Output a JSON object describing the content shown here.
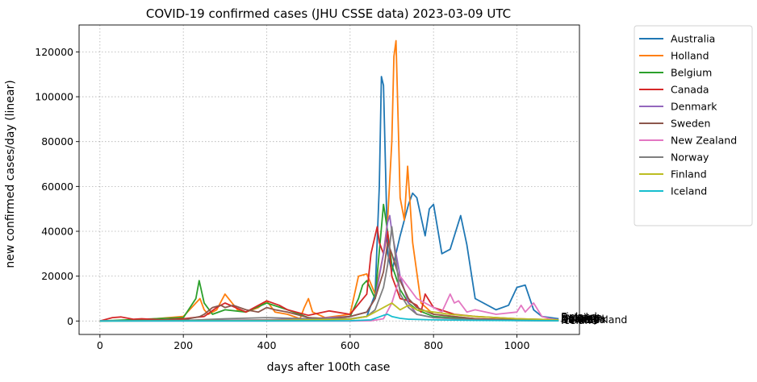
{
  "chart_data": {
    "type": "line",
    "title": "COVID-19 confirmed cases (JHU CSSE data) 2023-03-09 UTC",
    "xlabel": "days after 100th case",
    "ylabel": "new confirmed cases/day (linear)",
    "xlim": [
      -50,
      1150
    ],
    "ylim": [
      -6000,
      132000
    ],
    "x_ticks": [
      0,
      200,
      400,
      600,
      800,
      1000
    ],
    "y_ticks": [
      0,
      20000,
      40000,
      60000,
      80000,
      100000,
      120000
    ],
    "grid": true,
    "legend_position": "outside-right",
    "series": [
      {
        "name": "Australia",
        "color": "#1f77b4",
        "x": [
          0,
          100,
          200,
          300,
          400,
          500,
          600,
          640,
          660,
          670,
          675,
          680,
          690,
          700,
          720,
          740,
          750,
          760,
          780,
          790,
          800,
          820,
          840,
          860,
          865,
          880,
          900,
          950,
          980,
          1000,
          1020,
          1040,
          1060,
          1100
        ],
        "y": [
          0,
          200,
          300,
          300,
          200,
          500,
          800,
          2000,
          12000,
          60000,
          109000,
          105000,
          30000,
          22000,
          38000,
          52000,
          57000,
          55000,
          38000,
          50000,
          52000,
          30000,
          32000,
          44000,
          47000,
          34000,
          10000,
          5000,
          7000,
          15000,
          16000,
          5000,
          2000,
          1000
        ]
      },
      {
        "name": "Holland",
        "color": "#ff7f0e",
        "x": [
          0,
          100,
          200,
          240,
          250,
          260,
          280,
          300,
          330,
          350,
          380,
          400,
          420,
          450,
          480,
          490,
          500,
          510,
          540,
          600,
          620,
          640,
          660,
          680,
          690,
          700,
          705,
          710,
          715,
          720,
          730,
          738,
          750,
          770,
          800,
          900,
          1000,
          1100
        ],
        "y": [
          0,
          500,
          2000,
          10000,
          5000,
          3000,
          5000,
          12000,
          5000,
          4000,
          6000,
          9000,
          4000,
          3000,
          1000,
          6000,
          10000,
          4000,
          1500,
          3000,
          20000,
          21000,
          12000,
          30000,
          45000,
          80000,
          118000,
          125000,
          90000,
          55000,
          45000,
          69000,
          35000,
          8000,
          3000,
          1000,
          500,
          200
        ]
      },
      {
        "name": "Belgium",
        "color": "#2ca02c",
        "x": [
          0,
          100,
          200,
          230,
          238,
          250,
          270,
          300,
          350,
          400,
          450,
          500,
          550,
          600,
          620,
          630,
          640,
          660,
          680,
          690,
          700,
          720,
          740,
          760,
          800,
          900,
          1000,
          1100
        ],
        "y": [
          0,
          800,
          1500,
          10000,
          18000,
          8000,
          3000,
          5000,
          4000,
          8000,
          5000,
          1500,
          1000,
          2000,
          10000,
          16000,
          18000,
          10000,
          52000,
          40000,
          25000,
          14000,
          8000,
          5000,
          2000,
          800,
          300,
          100
        ]
      },
      {
        "name": "Canada",
        "color": "#d62728",
        "x": [
          0,
          30,
          50,
          80,
          100,
          150,
          200,
          250,
          280,
          300,
          350,
          400,
          430,
          450,
          500,
          550,
          600,
          640,
          650,
          660,
          665,
          670,
          680,
          690,
          700,
          710,
          720,
          740,
          760,
          770,
          780,
          800,
          850,
          900,
          1000,
          1100
        ],
        "y": [
          0,
          1500,
          1800,
          800,
          1000,
          500,
          1000,
          2000,
          6000,
          8000,
          4000,
          9000,
          7000,
          5000,
          2500,
          4500,
          3000,
          12000,
          30000,
          38000,
          42000,
          35000,
          30000,
          40000,
          20000,
          15000,
          10000,
          9000,
          7000,
          4000,
          12000,
          6000,
          3000,
          2000,
          1000,
          500
        ]
      },
      {
        "name": "Denmark",
        "color": "#9467bd",
        "x": [
          0,
          200,
          400,
          500,
          600,
          640,
          660,
          670,
          680,
          690,
          695,
          700,
          710,
          720,
          740,
          760,
          800,
          900,
          1000,
          1100
        ],
        "y": [
          0,
          300,
          500,
          1000,
          2000,
          4000,
          10000,
          20000,
          30000,
          44000,
          47000,
          40000,
          30000,
          20000,
          8000,
          3000,
          1500,
          500,
          200,
          100
        ]
      },
      {
        "name": "Sweden",
        "color": "#8c564b",
        "x": [
          0,
          100,
          200,
          240,
          250,
          270,
          290,
          300,
          320,
          350,
          380,
          400,
          420,
          450,
          500,
          550,
          600,
          640,
          660,
          680,
          690,
          700,
          720,
          740,
          760,
          800,
          900,
          1000,
          1100
        ],
        "y": [
          0,
          200,
          500,
          2000,
          3000,
          6000,
          7000,
          6000,
          7000,
          5000,
          4000,
          6000,
          5000,
          4000,
          1500,
          1000,
          2000,
          4000,
          10000,
          22000,
          35000,
          30000,
          18000,
          10000,
          6000,
          3000,
          1000,
          500,
          200
        ]
      },
      {
        "name": "New Zealand",
        "color": "#e377c2",
        "x": [
          0,
          600,
          650,
          680,
          700,
          720,
          740,
          760,
          780,
          800,
          820,
          840,
          850,
          860,
          880,
          900,
          950,
          1000,
          1010,
          1020,
          1040,
          1060,
          1080,
          1100
        ],
        "y": [
          0,
          0,
          100,
          1000,
          8000,
          20000,
          15000,
          10000,
          8000,
          6000,
          4000,
          12000,
          8000,
          9000,
          4000,
          5000,
          3000,
          4000,
          7000,
          4000,
          8000,
          2000,
          1000,
          500
        ]
      },
      {
        "name": "Norway",
        "color": "#7f7f7f",
        "x": [
          0,
          200,
          300,
          400,
          500,
          600,
          640,
          660,
          680,
          690,
          700,
          720,
          740,
          760,
          800,
          900,
          1000,
          1100
        ],
        "y": [
          0,
          200,
          1000,
          1500,
          1000,
          1000,
          2000,
          5000,
          15000,
          25000,
          42000,
          12000,
          6000,
          3000,
          1500,
          500,
          200,
          100
        ]
      },
      {
        "name": "Finland",
        "color": "#bcbd22",
        "x": [
          0,
          200,
          400,
          500,
          600,
          640,
          660,
          680,
          700,
          720,
          740,
          760,
          800,
          840,
          900,
          1000,
          1100
        ],
        "y": [
          0,
          100,
          300,
          500,
          800,
          2000,
          4000,
          6000,
          8000,
          5000,
          7000,
          5000,
          4000,
          3000,
          2000,
          1000,
          500
        ]
      },
      {
        "name": "Iceland",
        "color": "#17becf",
        "x": [
          0,
          200,
          400,
          600,
          650,
          680,
          690,
          700,
          720,
          740,
          800,
          900,
          1000,
          1100
        ],
        "y": [
          0,
          50,
          50,
          100,
          500,
          2500,
          3000,
          2000,
          1200,
          800,
          500,
          300,
          200,
          100
        ]
      }
    ],
    "end_labels": [
      "Australia",
      "Holland",
      "Belgium",
      "Canada",
      "Denmark",
      "Sweden",
      "New Zealand",
      "Norway",
      "Finland",
      "Iceland"
    ]
  }
}
